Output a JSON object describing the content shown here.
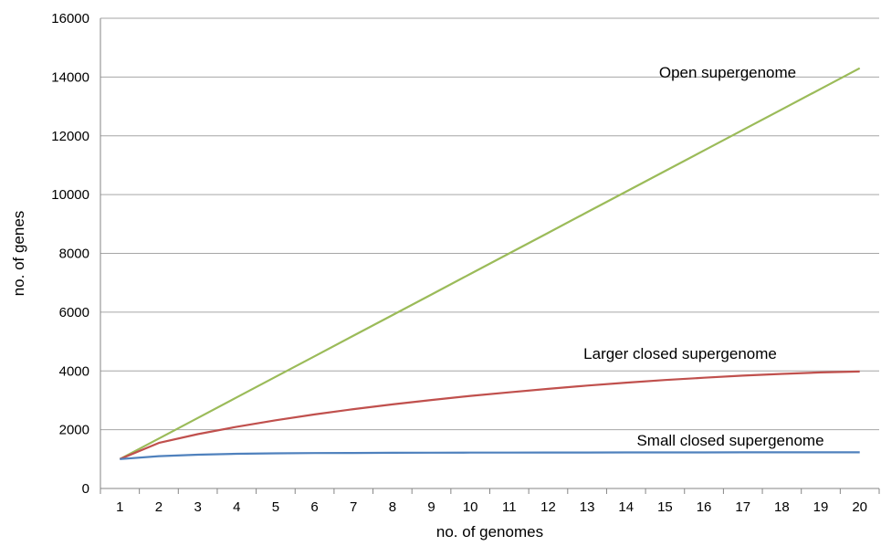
{
  "chart_data": {
    "type": "line",
    "title": "",
    "xlabel": "no. of genomes",
    "ylabel": "no. of genes",
    "x": [
      1,
      2,
      3,
      4,
      5,
      6,
      7,
      8,
      9,
      10,
      11,
      12,
      13,
      14,
      15,
      16,
      17,
      18,
      19,
      20
    ],
    "ylim": [
      0,
      16000
    ],
    "yticks": [
      0,
      2000,
      4000,
      6000,
      8000,
      10000,
      12000,
      14000,
      16000
    ],
    "grid": "horizontal",
    "legend": "none",
    "series": [
      {
        "name": "Open supergenome",
        "color": "#9bbb59",
        "values": [
          1000,
          1700,
          2400,
          3100,
          3800,
          4500,
          5200,
          5900,
          6600,
          7300,
          8000,
          8700,
          9400,
          10100,
          10800,
          11500,
          12200,
          12900,
          13600,
          14300
        ]
      },
      {
        "name": "Larger closed supergenome",
        "color": "#c0504d",
        "values": [
          1000,
          1550,
          1850,
          2100,
          2320,
          2520,
          2700,
          2860,
          3010,
          3150,
          3270,
          3390,
          3500,
          3600,
          3690,
          3770,
          3840,
          3900,
          3950,
          3980
        ]
      },
      {
        "name": "Small closed supergenome",
        "color": "#4f81bd",
        "values": [
          1000,
          1100,
          1150,
          1180,
          1195,
          1205,
          1210,
          1215,
          1218,
          1220,
          1222,
          1224,
          1225,
          1226,
          1227,
          1228,
          1229,
          1230,
          1230,
          1230
        ]
      }
    ]
  }
}
